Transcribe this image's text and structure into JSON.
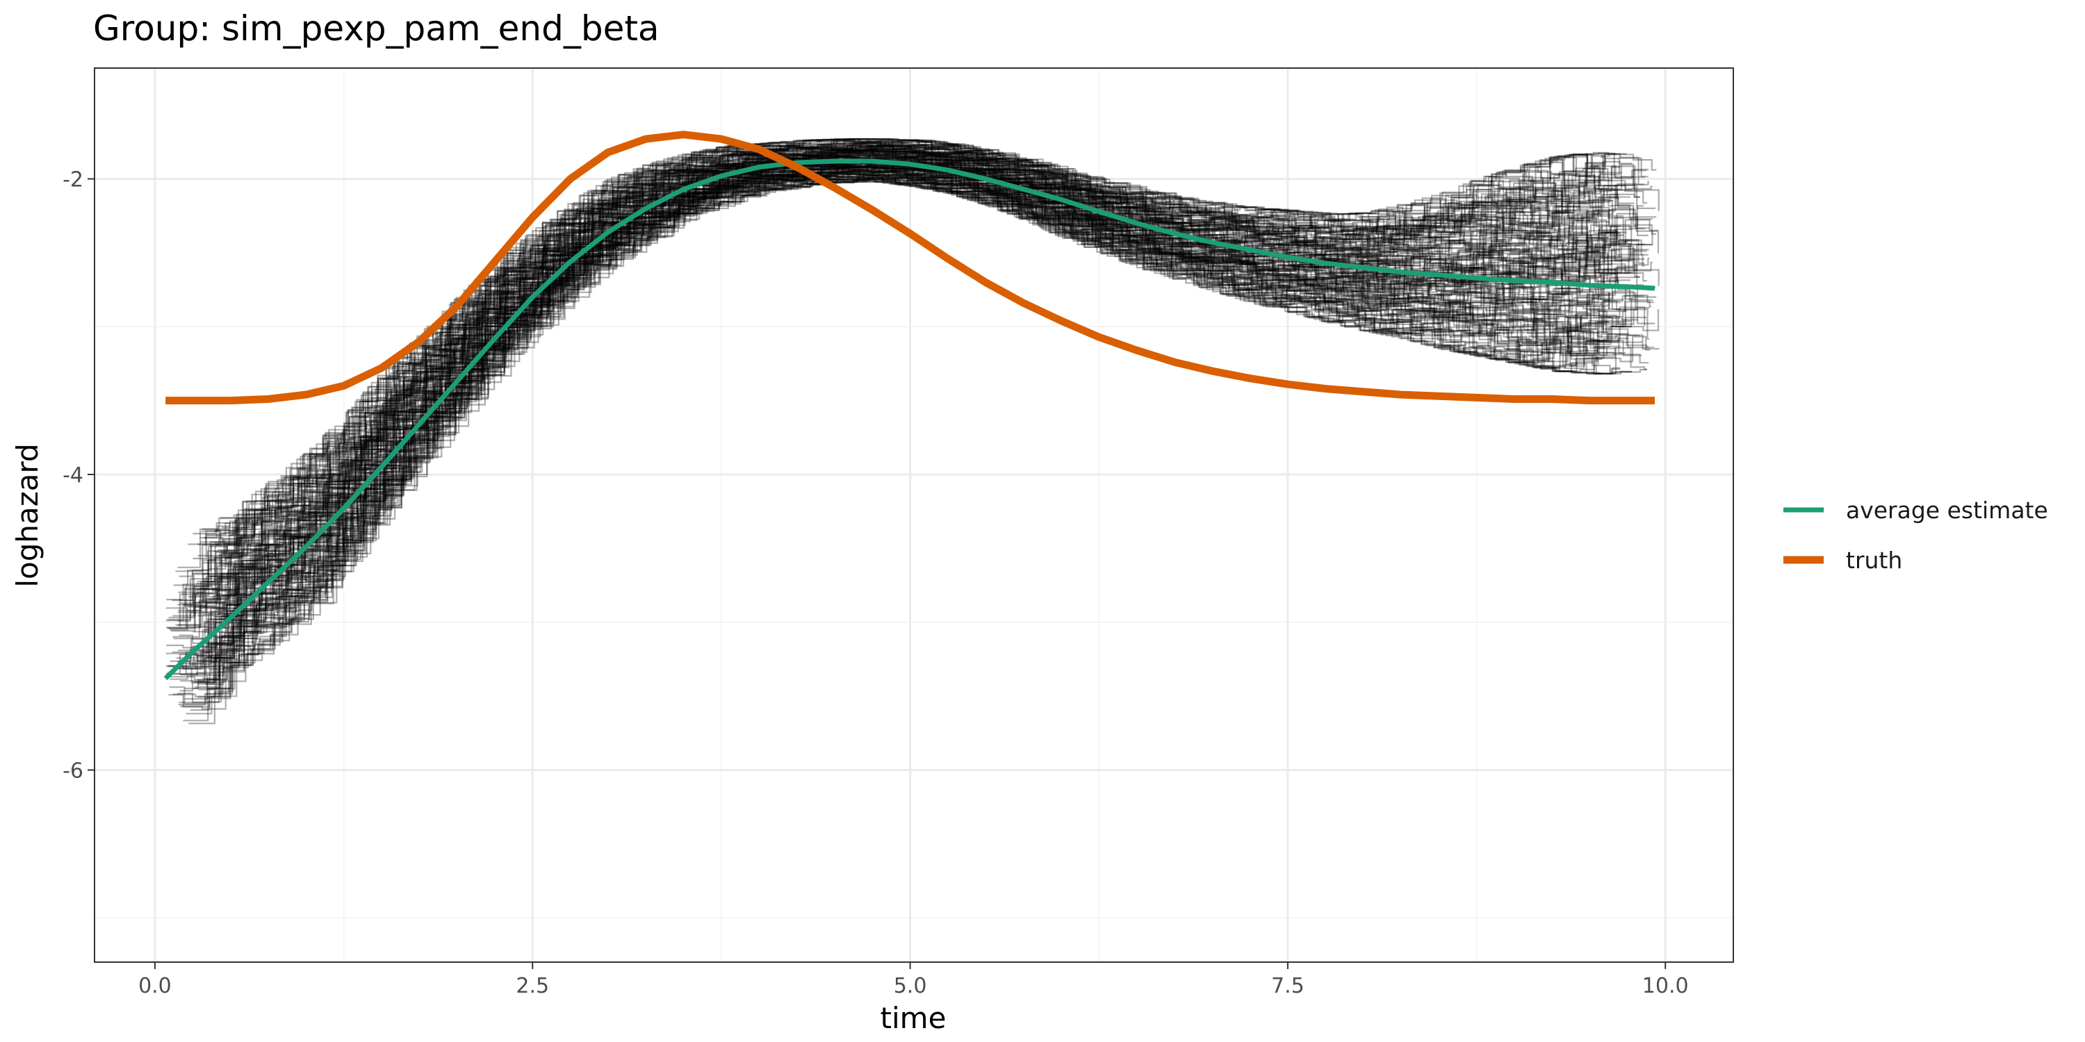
{
  "chart_data": {
    "type": "line",
    "title": "Group: sim_pexp_pam_end_beta",
    "xlabel": "time",
    "ylabel": "loghazard",
    "xlim": [
      -0.4,
      10.45
    ],
    "ylim": [
      -7.3,
      -1.25
    ],
    "x_ticks": [
      0,
      2.5,
      5,
      7.5,
      10
    ],
    "x_tick_labels": [
      "0.0",
      "2.5",
      "5.0",
      "7.5",
      "10.0"
    ],
    "y_ticks": [
      -6,
      -4,
      -2
    ],
    "y_tick_labels": [
      "-6",
      "-4",
      "-2"
    ],
    "grid": true,
    "legend_position": "right",
    "background_band": {
      "name": "simulation runs (step estimates)",
      "color": "#000000",
      "x": [
        0.07,
        0.25,
        0.5,
        0.75,
        1.0,
        1.25,
        1.5,
        1.75,
        2.0,
        2.25,
        2.5,
        2.75,
        3.0,
        3.25,
        3.5,
        3.75,
        4.0,
        4.25,
        4.5,
        4.75,
        5.0,
        5.25,
        5.5,
        5.75,
        6.0,
        6.25,
        6.5,
        6.75,
        7.0,
        7.25,
        7.5,
        7.75,
        8.0,
        8.25,
        8.5,
        8.75,
        9.0,
        9.25,
        9.5,
        9.75,
        9.93
      ],
      "lower": [
        -5.6,
        -5.7,
        -5.3,
        -5.1,
        -4.9,
        -4.55,
        -4.2,
        -3.85,
        -3.55,
        -3.25,
        -3.0,
        -2.75,
        -2.55,
        -2.4,
        -2.25,
        -2.15,
        -2.08,
        -2.05,
        -2.02,
        -2.02,
        -2.05,
        -2.1,
        -2.18,
        -2.28,
        -2.4,
        -2.5,
        -2.6,
        -2.68,
        -2.76,
        -2.84,
        -2.9,
        -2.97,
        -3.03,
        -3.08,
        -3.15,
        -3.2,
        -3.25,
        -3.3,
        -3.32,
        -3.3,
        -3.28
      ],
      "upper": [
        -4.8,
        -4.4,
        -4.25,
        -4.05,
        -3.85,
        -3.6,
        -3.3,
        -3.05,
        -2.8,
        -2.55,
        -2.35,
        -2.15,
        -2.0,
        -1.9,
        -1.83,
        -1.78,
        -1.76,
        -1.74,
        -1.73,
        -1.73,
        -1.74,
        -1.77,
        -1.82,
        -1.88,
        -1.95,
        -2.02,
        -2.08,
        -2.13,
        -2.17,
        -2.2,
        -2.22,
        -2.24,
        -2.23,
        -2.17,
        -2.1,
        -2.0,
        -1.92,
        -1.85,
        -1.82,
        -1.85,
        -1.95
      ]
    },
    "series": [
      {
        "name": "average estimate",
        "color": "#1b9e77",
        "x": [
          0.07,
          0.25,
          0.5,
          0.75,
          1.0,
          1.25,
          1.5,
          1.75,
          2.0,
          2.25,
          2.5,
          2.75,
          3.0,
          3.25,
          3.5,
          3.75,
          4.0,
          4.25,
          4.5,
          4.75,
          5.0,
          5.25,
          5.5,
          5.75,
          6.0,
          6.25,
          6.5,
          6.75,
          7.0,
          7.25,
          7.5,
          7.75,
          8.0,
          8.25,
          8.5,
          8.75,
          9.0,
          9.25,
          9.5,
          9.75,
          9.93
        ],
        "values": [
          -5.38,
          -5.2,
          -4.97,
          -4.73,
          -4.49,
          -4.23,
          -3.95,
          -3.66,
          -3.37,
          -3.08,
          -2.8,
          -2.56,
          -2.36,
          -2.2,
          -2.07,
          -1.98,
          -1.92,
          -1.89,
          -1.88,
          -1.88,
          -1.9,
          -1.94,
          -2.0,
          -2.07,
          -2.14,
          -2.22,
          -2.3,
          -2.37,
          -2.43,
          -2.48,
          -2.53,
          -2.57,
          -2.6,
          -2.63,
          -2.65,
          -2.67,
          -2.69,
          -2.7,
          -2.72,
          -2.73,
          -2.74
        ]
      },
      {
        "name": "truth",
        "color": "#d95f02",
        "x": [
          0.07,
          0.25,
          0.5,
          0.75,
          1.0,
          1.25,
          1.5,
          1.75,
          2.0,
          2.25,
          2.5,
          2.75,
          3.0,
          3.25,
          3.5,
          3.75,
          4.0,
          4.25,
          4.5,
          4.75,
          5.0,
          5.25,
          5.5,
          5.75,
          6.0,
          6.25,
          6.5,
          6.75,
          7.0,
          7.25,
          7.5,
          7.75,
          8.0,
          8.25,
          8.5,
          8.75,
          9.0,
          9.25,
          9.5,
          9.75,
          9.93
        ],
        "values": [
          -3.5,
          -3.5,
          -3.5,
          -3.49,
          -3.46,
          -3.4,
          -3.28,
          -3.1,
          -2.86,
          -2.56,
          -2.26,
          -2.0,
          -1.82,
          -1.73,
          -1.7,
          -1.73,
          -1.8,
          -1.92,
          -2.06,
          -2.21,
          -2.37,
          -2.54,
          -2.7,
          -2.84,
          -2.96,
          -3.07,
          -3.16,
          -3.24,
          -3.3,
          -3.35,
          -3.39,
          -3.42,
          -3.44,
          -3.46,
          -3.47,
          -3.48,
          -3.49,
          -3.49,
          -3.5,
          -3.5,
          -3.5
        ]
      }
    ]
  }
}
